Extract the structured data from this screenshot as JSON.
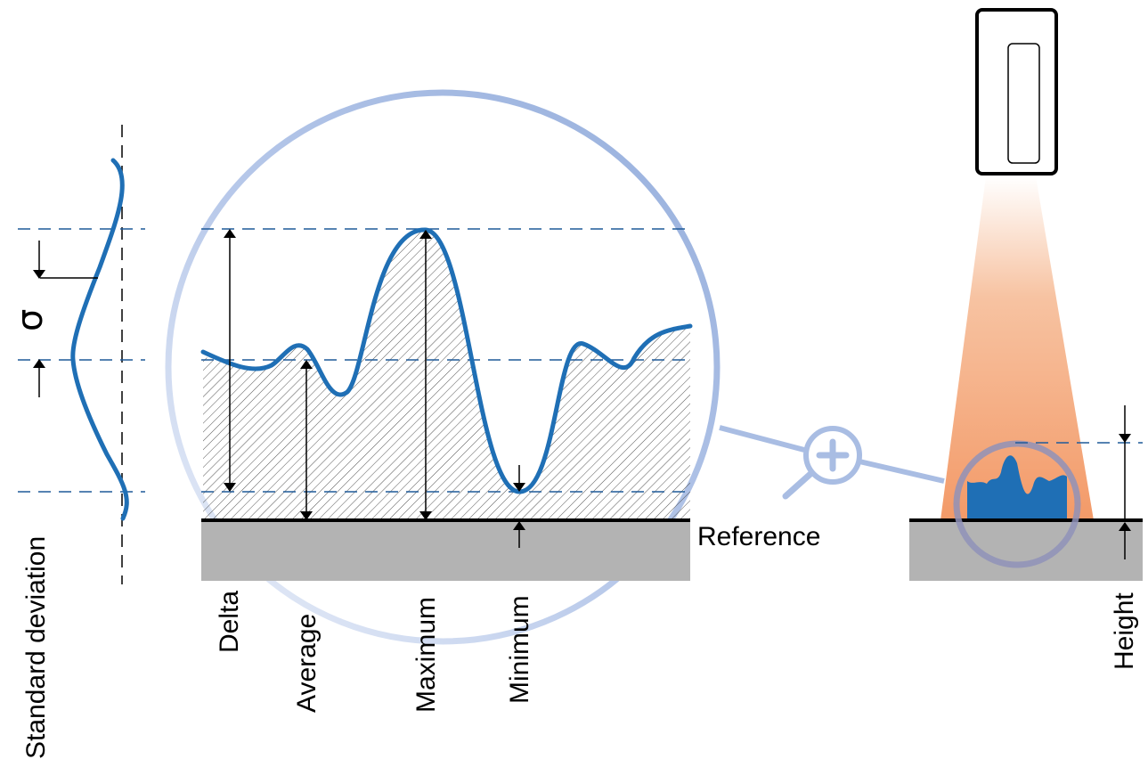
{
  "labels": {
    "standard_deviation": "Standard deviation",
    "sigma": "σ",
    "delta": "Delta",
    "average": "Average",
    "maximum": "Maximum",
    "minimum": "Minimum",
    "reference": "Reference",
    "height": "Height"
  },
  "colors": {
    "profile_blue": "#1f6fb5",
    "dash_blue": "#1f5a99",
    "magnifier_ring": "#9db4dc",
    "ground_gray": "#b3b3b3",
    "beam_orange": "#f3a070",
    "zoom_ring": "#8f92b8"
  },
  "icons": {
    "magnifier": "magnifier-plus-icon",
    "sensor": "sensor-device-icon"
  }
}
